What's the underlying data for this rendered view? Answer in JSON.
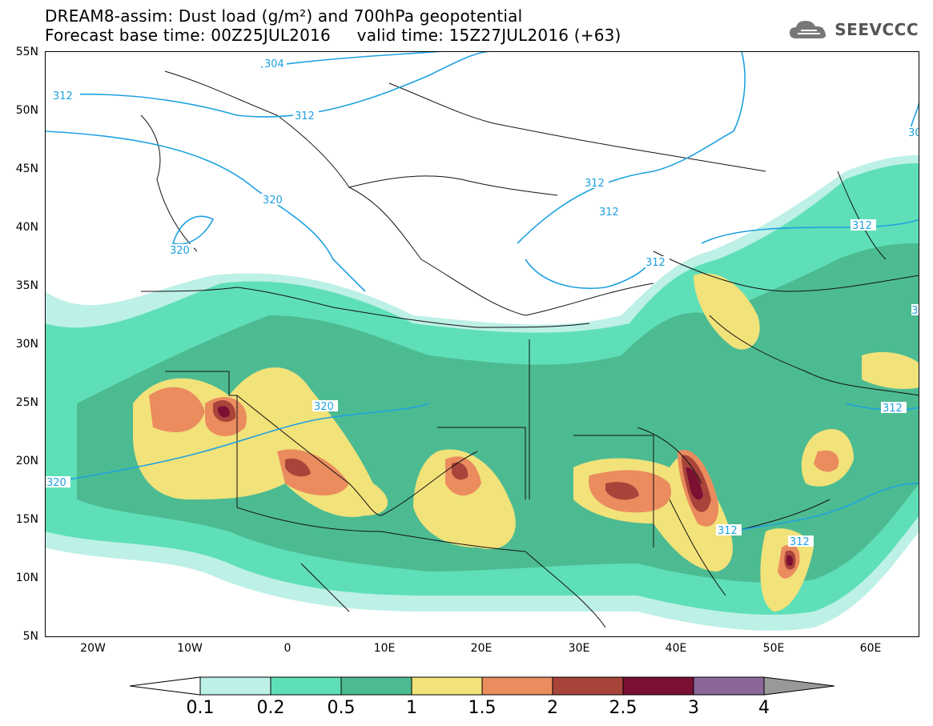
{
  "header": {
    "line1": "DREAM8-assim: Dust load (g/m²) and 700hPa geopotential",
    "line2": "Forecast base time: 00Z25JUL2016     valid time: 15Z27JUL2016 (+63)"
  },
  "brand": {
    "name": "SEEVCCC",
    "icon": "cloud-logo-icon"
  },
  "axes": {
    "lat_labels": [
      "55N",
      "50N",
      "45N",
      "40N",
      "35N",
      "30N",
      "25N",
      "20N",
      "15N",
      "10N",
      "5N"
    ],
    "lon_labels": [
      "20W",
      "10W",
      "0",
      "10E",
      "20E",
      "30E",
      "40E",
      "50E",
      "60E"
    ],
    "lat_range": [
      5,
      55
    ],
    "lon_range": [
      -25,
      65
    ]
  },
  "contours": {
    "labels": [
      "304",
      "312",
      "312",
      "320",
      "320",
      "320",
      "312",
      "312",
      "312",
      "312",
      "312",
      "312",
      "320",
      "312",
      "30",
      "3"
    ]
  },
  "legend": {
    "ticks": [
      "0.1",
      "0.2",
      "0.5",
      "1",
      "1.5",
      "2",
      "2.5",
      "3",
      "4"
    ],
    "colors": [
      "#ffffff",
      "#bdf0e6",
      "#5fdfb8",
      "#4dbb92",
      "#f2e27a",
      "#ea8c5e",
      "#a9443b",
      "#7a1133",
      "#8a669a",
      "#999999"
    ]
  },
  "colors": {
    "contour": "#1fa2e0",
    "border": "#111111"
  }
}
